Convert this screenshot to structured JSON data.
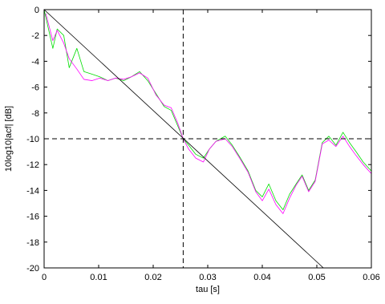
{
  "chart_data": {
    "type": "line",
    "xlabel": "tau [s]",
    "ylabel": "10log10|acf| [dB]",
    "xlim": [
      0,
      0.06
    ],
    "ylim": [
      -20,
      0
    ],
    "xticks": [
      0,
      0.01,
      0.02,
      0.03,
      0.04,
      0.05,
      0.06
    ],
    "xtick_labels": [
      "0",
      "0.01",
      "0.02",
      "0.03",
      "0.04",
      "0.05",
      "0.06"
    ],
    "yticks": [
      0,
      -2,
      -4,
      -6,
      -8,
      -10,
      -12,
      -14,
      -16,
      -18,
      -20
    ],
    "ytick_labels": [
      "0",
      "-2",
      "-4",
      "-6",
      "-8",
      "-10",
      "-12",
      "-14",
      "-16",
      "-18",
      "-20"
    ],
    "grid": false,
    "colors": {
      "acf": "#00dd00",
      "envelope": "#ff00ff",
      "decay_fit": "#000000",
      "reference": "#000000"
    },
    "series": [
      {
        "key": "acf",
        "style": "solid",
        "x": [
          0,
          0.0016,
          0.0024,
          0.0036,
          0.0046,
          0.006,
          0.0073,
          0.0088,
          0.0102,
          0.0117,
          0.0131,
          0.0146,
          0.016,
          0.0175,
          0.019,
          0.0205,
          0.022,
          0.0233,
          0.0245,
          0.0255,
          0.0265,
          0.0278,
          0.0292,
          0.0303,
          0.0315,
          0.0332,
          0.0345,
          0.036,
          0.0374,
          0.0388,
          0.04,
          0.0412,
          0.0425,
          0.0438,
          0.045,
          0.0462,
          0.0473,
          0.0485,
          0.0497,
          0.051,
          0.0522,
          0.0535,
          0.0548,
          0.056,
          0.0572,
          0.0585,
          0.06
        ],
        "y": [
          0,
          -3,
          -1.5,
          -2,
          -4.5,
          -3,
          -4.8,
          -5,
          -5.2,
          -5.5,
          -5.3,
          -5.5,
          -5.2,
          -4.8,
          -5.5,
          -6.5,
          -7.5,
          -7.8,
          -9,
          -10,
          -10.5,
          -11.2,
          -11.5,
          -10.8,
          -10.2,
          -9.8,
          -10.5,
          -11.5,
          -12.5,
          -14,
          -14.5,
          -13.5,
          -14.8,
          -15.5,
          -14.3,
          -13.5,
          -12.8,
          -14,
          -13.2,
          -10.3,
          -9.8,
          -10.5,
          -9.5,
          -10.3,
          -11,
          -11.8,
          -12.5
        ]
      },
      {
        "key": "envelope",
        "style": "solid",
        "x": [
          0.0003,
          0.0016,
          0.0024,
          0.0036,
          0.0046,
          0.006,
          0.0073,
          0.0088,
          0.0102,
          0.0117,
          0.0131,
          0.0146,
          0.016,
          0.0175,
          0.019,
          0.0205,
          0.022,
          0.0233,
          0.0245,
          0.0255,
          0.0265,
          0.0278,
          0.0292,
          0.0303,
          0.0315,
          0.0332,
          0.0345,
          0.036,
          0.0374,
          0.0388,
          0.04,
          0.0412,
          0.0425,
          0.0438,
          0.045,
          0.0462,
          0.0473,
          0.0485,
          0.0497,
          0.051,
          0.0522,
          0.0535,
          0.0548,
          0.056,
          0.0572,
          0.0585,
          0.06
        ],
        "y": [
          -0.3,
          -2.4,
          -1.6,
          -2.6,
          -3.8,
          -4.6,
          -5.4,
          -5.5,
          -5.3,
          -5.5,
          -5.3,
          -5.4,
          -5.2,
          -4.9,
          -5.3,
          -6.6,
          -7.4,
          -7.6,
          -8.8,
          -10,
          -10.8,
          -11.5,
          -11.8,
          -10.8,
          -10.2,
          -10,
          -10.6,
          -11.6,
          -12.6,
          -14.1,
          -14.8,
          -13.9,
          -15.1,
          -15.8,
          -14.6,
          -13.6,
          -12.9,
          -14.1,
          -13.3,
          -10.4,
          -10.1,
          -10.6,
          -9.8,
          -10.6,
          -11.3,
          -12,
          -12.7
        ]
      },
      {
        "key": "decay_fit",
        "style": "solid",
        "x": [
          0,
          0.0512
        ],
        "y": [
          0,
          -20
        ]
      }
    ],
    "reference_lines": {
      "hline_y": -10,
      "vline_x": 0.0255,
      "style": "dashed"
    }
  }
}
